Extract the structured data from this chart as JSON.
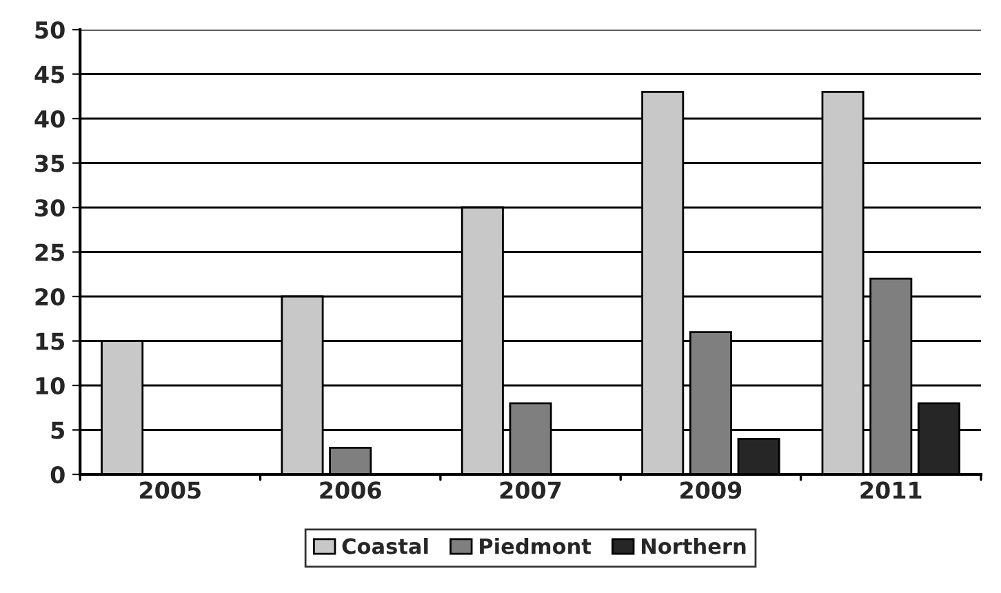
{
  "chart_data": {
    "type": "bar",
    "categories": [
      "2005",
      "2006",
      "2007",
      "2009",
      "2011"
    ],
    "series": [
      {
        "name": "Coastal",
        "color": "#c8c8c8",
        "values": [
          15,
          20,
          30,
          43,
          43
        ]
      },
      {
        "name": "Piedmont",
        "color": "#7f7f7f",
        "values": [
          null,
          3,
          8,
          16,
          22
        ]
      },
      {
        "name": "Northern",
        "color": "#262626",
        "values": [
          null,
          null,
          null,
          4,
          8
        ]
      }
    ],
    "ylim": [
      0,
      50
    ],
    "yticks": [
      0,
      5,
      10,
      15,
      20,
      25,
      30,
      35,
      40,
      45,
      50
    ],
    "grid": "y",
    "legend": "bottom"
  }
}
